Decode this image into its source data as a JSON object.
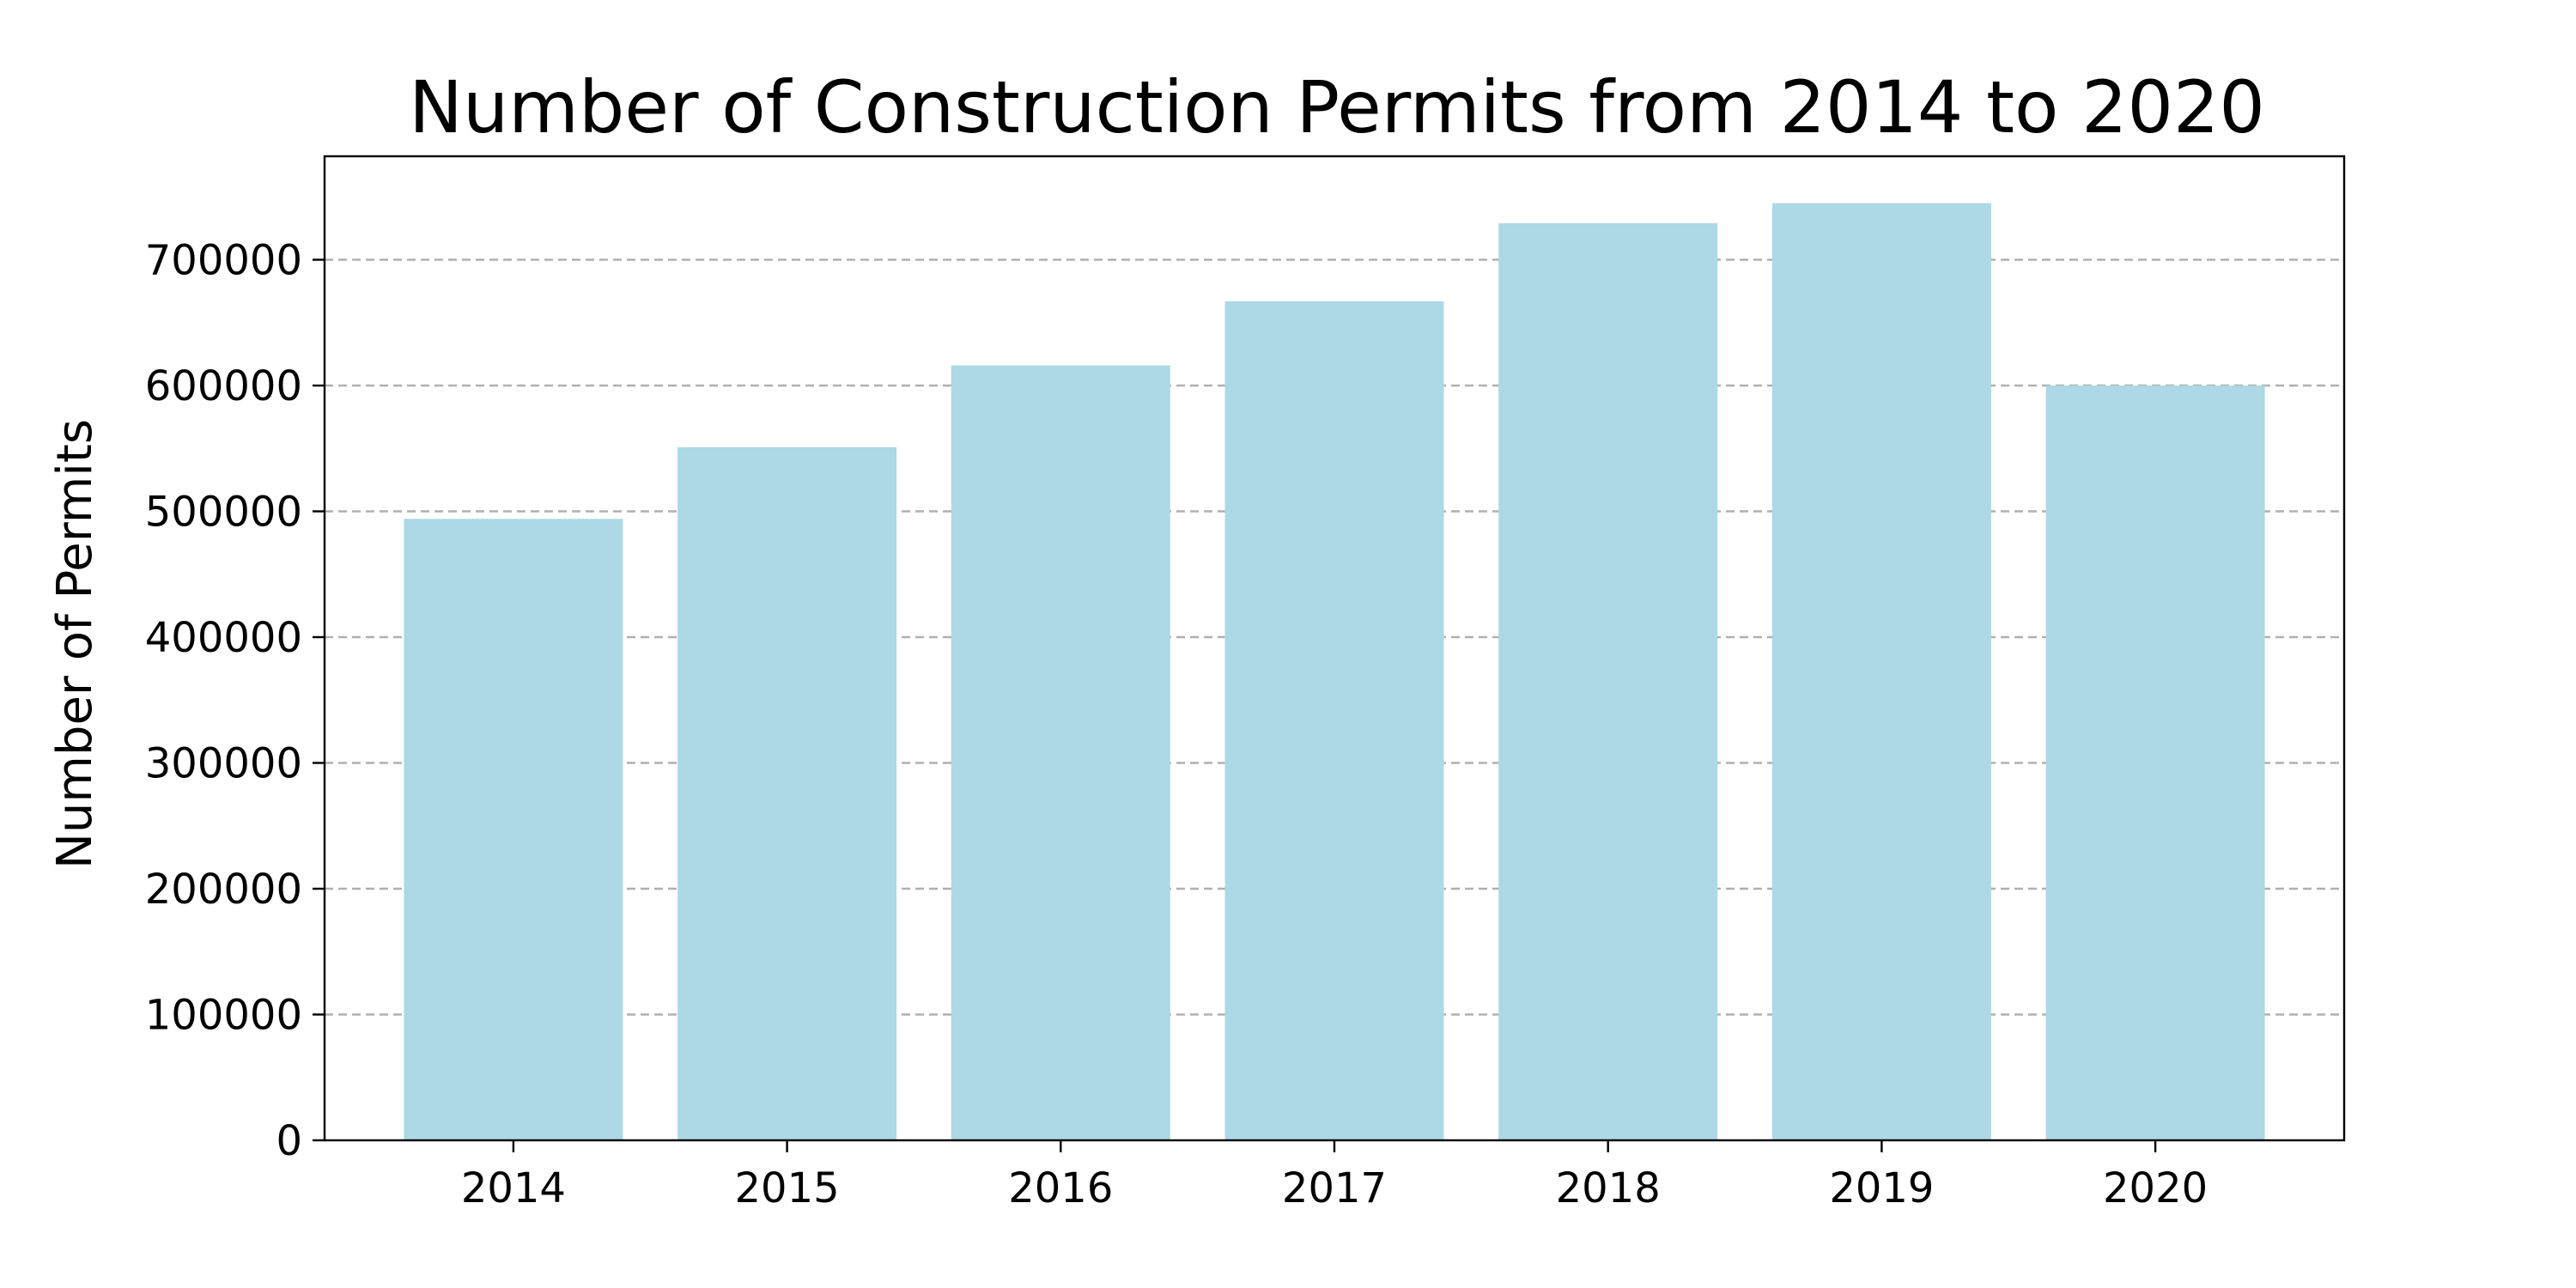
{
  "chart_data": {
    "type": "bar",
    "title": "Number of Construction Permits from 2014 to 2020",
    "xlabel": "",
    "ylabel": "Number of Permits",
    "categories": [
      "2014",
      "2015",
      "2016",
      "2017",
      "2018",
      "2019",
      "2020"
    ],
    "values": [
      494000,
      551000,
      616000,
      667000,
      729000,
      745000,
      600000
    ],
    "ylim": [
      0,
      782250
    ],
    "yticks": [
      0,
      100000,
      200000,
      300000,
      400000,
      500000,
      600000,
      700000
    ],
    "ytick_labels": [
      "0",
      "100000",
      "200000",
      "300000",
      "400000",
      "500000",
      "600000",
      "700000"
    ],
    "grid": "y-dashed",
    "legend": "none",
    "colors": {
      "bar": "#add8e6",
      "grid": "#b0b0b0",
      "axis": "#000000"
    }
  }
}
